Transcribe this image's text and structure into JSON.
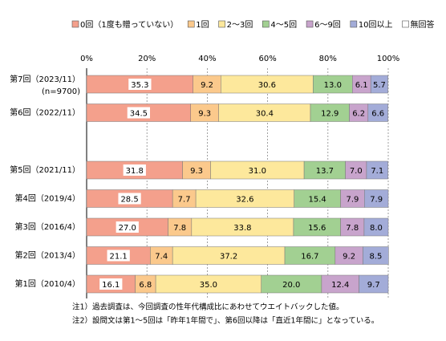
{
  "chart_data": {
    "type": "stacked-bar-horizontal-100",
    "categories": [
      "第7回（2023/11）",
      "第6回（2022/11）",
      "第5回（2021/11）",
      "第4回（2019/4）",
      "第3回（2016/4）",
      "第2回（2013/4）",
      "第1回（2010/4）"
    ],
    "category_note": "(n=9700)",
    "series": [
      {
        "name": "0回（1度も贈っていない）",
        "color": "#f4a08c",
        "values": [
          35.3,
          34.5,
          31.8,
          28.5,
          27,
          21.1,
          16.1
        ],
        "value_labels": [
          "35.3",
          "34.5",
          "31.8",
          "28.5",
          "27.0",
          "21.1",
          "16.1"
        ]
      },
      {
        "name": "1回",
        "color": "#fbc98c",
        "values": [
          9.2,
          9.3,
          9.3,
          7.7,
          7.8,
          7.4,
          6.8
        ],
        "value_labels": [
          "9.2",
          "9.3",
          "9.3",
          "7.7",
          "7.8",
          "7.4",
          "6.8"
        ]
      },
      {
        "name": "2～3回",
        "color": "#fde89c",
        "values": [
          30.6,
          30.4,
          31,
          32.6,
          33.8,
          37.2,
          35
        ],
        "value_labels": [
          "30.6",
          "30.4",
          "31.0",
          "32.6",
          "33.8",
          "37.2",
          "35.0"
        ]
      },
      {
        "name": "4～5回",
        "color": "#a2d092",
        "values": [
          13,
          12.9,
          13.7,
          15.4,
          15.6,
          16.7,
          20
        ],
        "value_labels": [
          "13.0",
          "12.9",
          "13.7",
          "15.4",
          "15.6",
          "16.7",
          "20.0"
        ]
      },
      {
        "name": "6～9回",
        "color": "#c8a4cc",
        "values": [
          6.1,
          6.2,
          7,
          7.9,
          7.8,
          9.2,
          12.4
        ],
        "value_labels": [
          "6.1",
          "6.2",
          "7.0",
          "7.9",
          "7.8",
          "9.2",
          "12.4"
        ]
      },
      {
        "name": "10回以上",
        "color": "#a3acd8",
        "values": [
          5.7,
          6.6,
          7.1,
          7.9,
          8,
          8.5,
          9.7
        ],
        "value_labels": [
          "5.7",
          "6.6",
          "7.1",
          "7.9",
          "8.0",
          "8.5",
          "9.7"
        ]
      },
      {
        "name": "無回答",
        "color": "#ffffff",
        "values": [
          null,
          null,
          null,
          null,
          null,
          null,
          null
        ]
      }
    ],
    "xlim": [
      0,
      100
    ],
    "xticks": [
      {
        "value": 0,
        "label": "0%"
      },
      {
        "value": 20,
        "label": "20%"
      },
      {
        "value": 40,
        "label": "40%"
      },
      {
        "value": 60,
        "label": "60%"
      },
      {
        "value": 80,
        "label": "80%"
      },
      {
        "value": 100,
        "label": "100%"
      }
    ],
    "grid": true,
    "notes": [
      "注1）過去調査は、今回調査の性年代構成比にあわせてウエイトバックした値。",
      "注2）設問文は第1～5回は「昨年1年間で」、第6回以降は「直近1年間に」となっている。"
    ]
  }
}
